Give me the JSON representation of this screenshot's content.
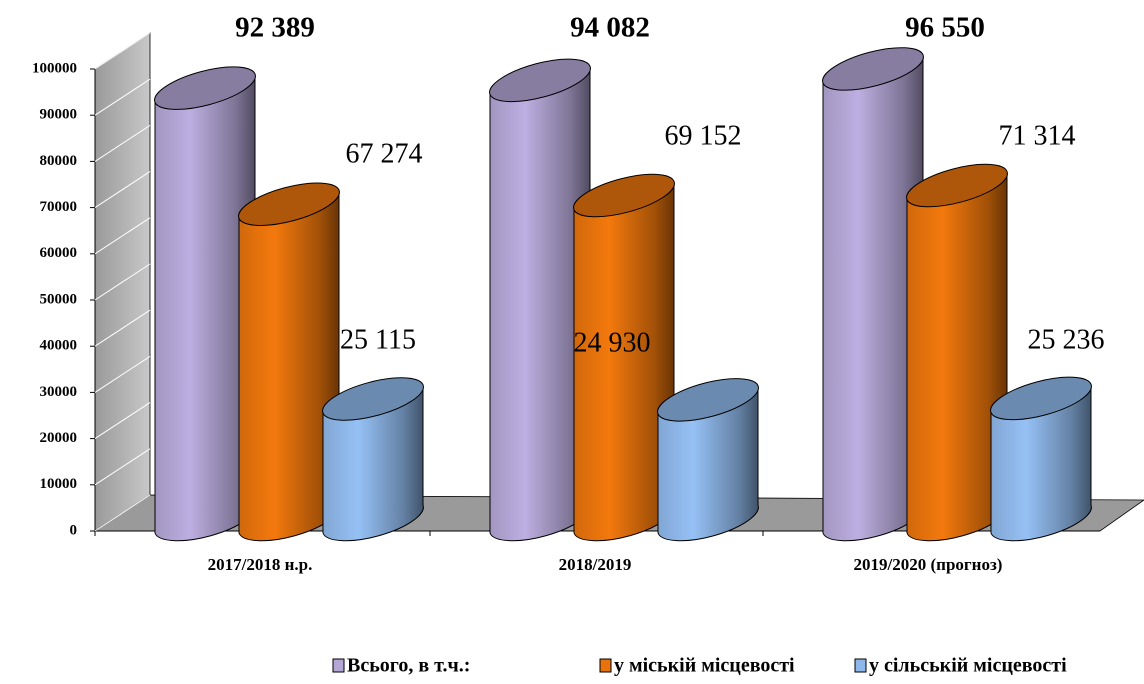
{
  "chart_data": {
    "type": "bar3d",
    "categories": [
      "2017/2018 н.р.",
      "2018/2019",
      "2019/2020 (прогноз)"
    ],
    "series": [
      {
        "name": "Всього, в т.ч.:",
        "color": "#b4a7d6",
        "values": [
          92389,
          94082,
          96550
        ],
        "value_labels": [
          "92 389",
          "94 082",
          "96 550"
        ]
      },
      {
        "name": "у міській місцевості",
        "color": "#e8730c",
        "values": [
          67274,
          69152,
          71314
        ],
        "value_labels": [
          "67 274",
          "69 152",
          "71 314"
        ]
      },
      {
        "name": "у сільській місцевості",
        "color": "#8fb8ea",
        "values": [
          25115,
          24930,
          25236
        ],
        "value_labels": [
          "25 115",
          "24 930",
          "25 236"
        ]
      }
    ],
    "ylim": [
      0,
      100000
    ],
    "yticks": [
      0,
      10000,
      20000,
      30000,
      40000,
      50000,
      60000,
      70000,
      80000,
      90000,
      100000
    ],
    "grid": true,
    "legend": "bottom"
  }
}
